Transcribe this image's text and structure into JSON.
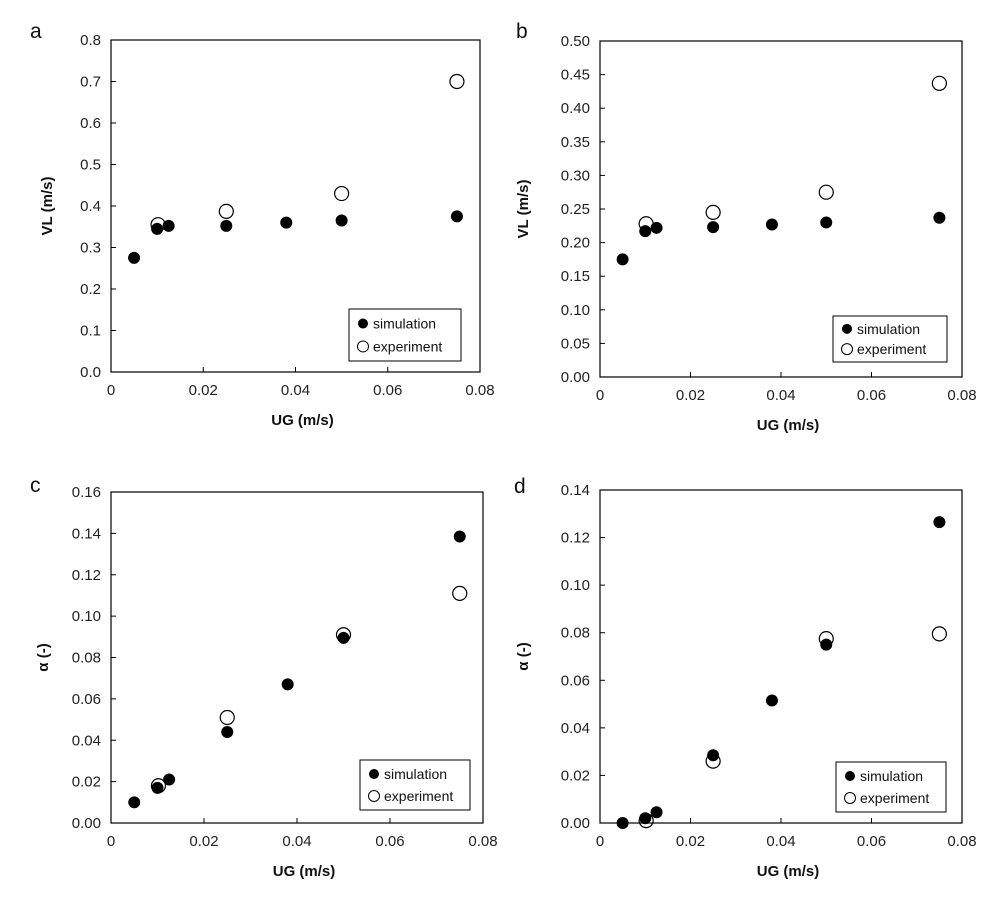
{
  "chart_data": [
    {
      "panel_letter": "a",
      "type": "scatter",
      "xlabel": "UG (m/s)",
      "ylabel": "VL (m/s)",
      "xlim": [
        0,
        0.08
      ],
      "ylim": [
        0,
        0.8
      ],
      "xticks": [
        "0",
        "0.02",
        "0.04",
        "0.06",
        "0.08"
      ],
      "yticks": [
        "0.0",
        "0.1",
        "0.2",
        "0.3",
        "0.4",
        "0.5",
        "0.6",
        "0.7",
        "0.8"
      ],
      "legend_position": "bottom-right",
      "series": [
        {
          "name": "simulation",
          "marker": "filled-circle",
          "x": [
            0.005,
            0.01,
            0.0125,
            0.025,
            0.038,
            0.05,
            0.075
          ],
          "y": [
            0.275,
            0.345,
            0.352,
            0.352,
            0.36,
            0.365,
            0.375
          ]
        },
        {
          "name": "experiment",
          "marker": "open-circle",
          "x": [
            0.0102,
            0.025,
            0.05,
            0.075
          ],
          "y": [
            0.355,
            0.387,
            0.43,
            0.7
          ]
        }
      ]
    },
    {
      "panel_letter": "b",
      "type": "scatter",
      "xlabel": "UG (m/s)",
      "ylabel": "VL (m/s)",
      "xlim": [
        0,
        0.08
      ],
      "ylim": [
        0,
        0.5
      ],
      "xticks": [
        "0",
        "0.02",
        "0.04",
        "0.06",
        "0.08"
      ],
      "yticks": [
        "0.00",
        "0.05",
        "0.10",
        "0.15",
        "0.20",
        "0.25",
        "0.30",
        "0.35",
        "0.40",
        "0.45",
        "0.50"
      ],
      "legend_position": "bottom-right",
      "series": [
        {
          "name": "simulation",
          "marker": "filled-circle",
          "x": [
            0.005,
            0.01,
            0.0125,
            0.025,
            0.038,
            0.05,
            0.075
          ],
          "y": [
            0.175,
            0.217,
            0.222,
            0.223,
            0.227,
            0.23,
            0.237
          ]
        },
        {
          "name": "experiment",
          "marker": "open-circle",
          "x": [
            0.0102,
            0.025,
            0.05,
            0.075
          ],
          "y": [
            0.228,
            0.245,
            0.275,
            0.437
          ]
        }
      ]
    },
    {
      "panel_letter": "c",
      "type": "scatter",
      "xlabel": "UG (m/s)",
      "ylabel": "α (-)",
      "xlim": [
        0,
        0.08
      ],
      "ylim": [
        0,
        0.16
      ],
      "xticks": [
        "0",
        "0.02",
        "0.04",
        "0.06",
        "0.08"
      ],
      "yticks": [
        "0.00",
        "0.02",
        "0.04",
        "0.06",
        "0.08",
        "0.10",
        "0.12",
        "0.14",
        "0.16"
      ],
      "legend_position": "bottom-right",
      "series": [
        {
          "name": "simulation",
          "marker": "filled-circle",
          "x": [
            0.005,
            0.01,
            0.0125,
            0.025,
            0.038,
            0.05,
            0.075
          ],
          "y": [
            0.01,
            0.017,
            0.021,
            0.044,
            0.067,
            0.0895,
            0.1385
          ]
        },
        {
          "name": "experiment",
          "marker": "open-circle",
          "x": [
            0.0102,
            0.025,
            0.05,
            0.075
          ],
          "y": [
            0.018,
            0.051,
            0.091,
            0.111
          ]
        }
      ]
    },
    {
      "panel_letter": "d",
      "type": "scatter",
      "xlabel": "UG (m/s)",
      "ylabel": "α (-)",
      "xlim": [
        0,
        0.08
      ],
      "ylim": [
        0,
        0.14
      ],
      "xticks": [
        "0",
        "0.02",
        "0.04",
        "0.06",
        "0.08"
      ],
      "yticks": [
        "0.00",
        "0.02",
        "0.04",
        "0.06",
        "0.08",
        "0.10",
        "0.12",
        "0.14"
      ],
      "legend_position": "bottom-right",
      "series": [
        {
          "name": "simulation",
          "marker": "filled-circle",
          "x": [
            0.005,
            0.01,
            0.0125,
            0.025,
            0.038,
            0.05,
            0.075
          ],
          "y": [
            0.0,
            0.002,
            0.0045,
            0.0285,
            0.0515,
            0.075,
            0.1265
          ]
        },
        {
          "name": "experiment",
          "marker": "open-circle",
          "x": [
            0.0102,
            0.025,
            0.05,
            0.075
          ],
          "y": [
            0.001,
            0.026,
            0.0775,
            0.0795
          ]
        }
      ]
    }
  ]
}
